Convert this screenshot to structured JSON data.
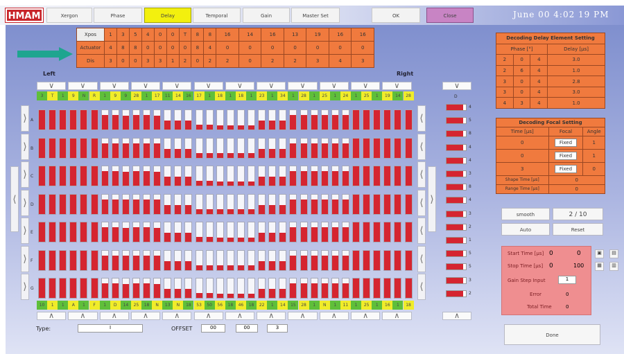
{
  "header": {
    "logo": "HMAM",
    "tabs": [
      "Xergon",
      "Phase",
      "Delay",
      "Temporal",
      "Gain",
      "Master Set"
    ],
    "active_tab": 2,
    "ok": "OK",
    "close": "Close",
    "clock": "June 00 4:02 19 PM"
  },
  "top_table": {
    "rows": [
      {
        "label": "Xpos",
        "values": [
          "1",
          "3",
          "5",
          "4",
          "0",
          "0",
          "T",
          "8",
          "8",
          "16",
          "14",
          "16",
          "13",
          "19",
          "16",
          "16"
        ]
      },
      {
        "label": "Actuator",
        "values": [
          "4",
          "8",
          "8",
          "0",
          "0",
          "0",
          "0",
          "8",
          "4",
          "0",
          "0",
          "0",
          "0",
          "0",
          "0",
          "0"
        ]
      },
      {
        "label": "Dis",
        "values": [
          "3",
          "0",
          "0",
          "3",
          "3",
          "1",
          "2",
          "0",
          "2",
          "2",
          "0",
          "2",
          "2",
          "3",
          "4",
          "3"
        ]
      }
    ]
  },
  "grid": {
    "left_label": "Left",
    "right_label": "Right",
    "row_labels": [
      "A",
      "B",
      "C",
      "D",
      "E",
      "F",
      "G"
    ],
    "levels": [
      1,
      1,
      1,
      1,
      1,
      1,
      0.75,
      0.75,
      0.72,
      0.75,
      0.75,
      0.72,
      0.45,
      0.45,
      0.45,
      0.25,
      0.25,
      0.22,
      0.22,
      0.22,
      0.22,
      0.45,
      0.45,
      0.45,
      0.75,
      0.75,
      0.75,
      0.75,
      0.75,
      0.75,
      1,
      1,
      1,
      1,
      1,
      1
    ],
    "top_tags": [
      "3",
      "T",
      "1",
      "9",
      "N",
      "R",
      "1",
      "9",
      "9",
      "28",
      "1",
      "17",
      "11",
      "14",
      "16",
      "17",
      "1",
      "18",
      "1",
      "18",
      "1",
      "23",
      "1",
      "34",
      "1",
      "28",
      "1",
      "25",
      "1",
      "24",
      "1",
      "25",
      "1",
      "19",
      "14",
      "28"
    ],
    "bottom_tags": [
      "10",
      "1",
      "1",
      "A",
      "1",
      "F",
      "1",
      "D",
      "14",
      "25",
      "18",
      "N",
      "13",
      "N",
      "18",
      "53",
      "50",
      "56",
      "18",
      "46",
      "18",
      "22",
      "1",
      "14",
      "15",
      "28",
      "1",
      "N",
      "1",
      "11",
      "1",
      "25",
      "1",
      "16",
      "1",
      "18"
    ]
  },
  "right_column": {
    "label": "D",
    "values": [
      "4",
      "5",
      "8",
      "4",
      "4",
      "3",
      "8",
      "4",
      "3",
      "2",
      "1",
      "5",
      "5",
      "3",
      "2"
    ],
    "levels": [
      0.85,
      0.85,
      0.85,
      0.85,
      0.85,
      0.85,
      0.85,
      0.85,
      0.85,
      0.85,
      0.85,
      0.85,
      0.85,
      0.85,
      0.85
    ]
  },
  "bottom": {
    "type_label": "Type:",
    "type_value": "I",
    "offset_label": "OFFSET",
    "offset_values": [
      "00",
      "00",
      "3"
    ]
  },
  "panel1": {
    "title": "Decoding Delay Element Setting",
    "headers": [
      "Phase [°]",
      "Delay [μs]"
    ],
    "rows": [
      [
        "2",
        "0",
        "4",
        "3.0"
      ],
      [
        "2",
        "6",
        "4",
        "1.0"
      ],
      [
        "3",
        "0",
        "4",
        "2.8"
      ],
      [
        "3",
        "0",
        "4",
        "3.0"
      ],
      [
        "4",
        "3",
        "4",
        "1.0"
      ]
    ]
  },
  "panel2": {
    "title": "Decoding Focal Setting",
    "headers": [
      "Time [μs]",
      "Focal",
      "Angle"
    ],
    "rows": [
      [
        "0",
        "Fixed",
        "1"
      ],
      [
        "0",
        "Fixed",
        "1"
      ],
      [
        "3",
        "Fixed",
        "0"
      ]
    ],
    "extra": [
      [
        "Shape Time [μs]",
        "0"
      ],
      [
        "Range Time [μs]",
        "0"
      ]
    ]
  },
  "controls": {
    "smooth": "smooth",
    "count": "2 / 10",
    "auto": "Auto",
    "reset": "Reset"
  },
  "pink_panel": {
    "rows": [
      [
        "Start Time [μs]",
        "0",
        "0"
      ],
      [
        "Stop Time [μs]",
        "0",
        "100"
      ]
    ],
    "gain_label": "Gain Step Input",
    "gain_value": "1",
    "error_label": "Error",
    "error_value": "0",
    "total_label": "Total Time",
    "total_value": "0"
  },
  "done": "Done",
  "colors": {
    "accent": "#f07a3e",
    "bar": "#d52530",
    "active_tab": "#f3f00e",
    "close": "#c884c4",
    "arrow": "#1ea58f"
  }
}
